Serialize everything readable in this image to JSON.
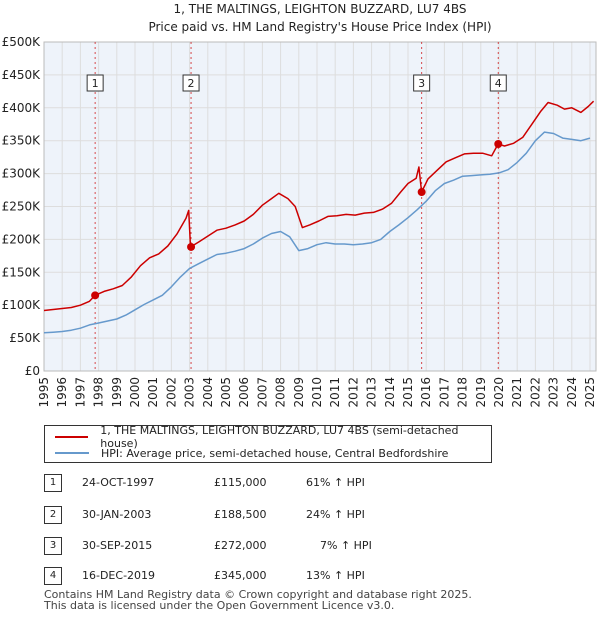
{
  "chart_data": {
    "type": "line",
    "title": "1, THE MALTINGS, LEIGHTON BUZZARD, LU7 4BS",
    "subtitle": "Price paid vs. HM Land Registry's House Price Index (HPI)",
    "x_range": [
      1995,
      2025.33
    ],
    "ylim": [
      0,
      500000
    ],
    "y_ticks": [
      0,
      50000,
      100000,
      150000,
      200000,
      250000,
      300000,
      350000,
      400000,
      450000,
      500000
    ],
    "y_tick_labels": [
      "£0",
      "£50K",
      "£100K",
      "£150K",
      "£200K",
      "£250K",
      "£300K",
      "£350K",
      "£400K",
      "£450K",
      "£500K"
    ],
    "x_ticks": [
      1995,
      1996,
      1997,
      1998,
      1999,
      2000,
      2001,
      2002,
      2003,
      2004,
      2005,
      2006,
      2007,
      2008,
      2009,
      2010,
      2011,
      2012,
      2013,
      2014,
      2015,
      2016,
      2017,
      2018,
      2019,
      2020,
      2021,
      2022,
      2023,
      2024,
      2025
    ],
    "x_tick_labels": [
      "1995",
      "1996",
      "1997",
      "1998",
      "1999",
      "2000",
      "2001",
      "2002",
      "2003",
      "2004",
      "2005",
      "2006",
      "2007",
      "2008",
      "2009",
      "2010",
      "2011",
      "2012",
      "2013",
      "2014",
      "2015",
      "2016",
      "2017",
      "2018",
      "2019",
      "2020",
      "2021",
      "2022",
      "2023",
      "2024",
      "2025"
    ],
    "series": [
      {
        "name": "1, THE MALTINGS, LEIGHTON BUZZARD, LU7 4BS (semi-detached house)",
        "color": "#cc0000",
        "points": [
          [
            1995.0,
            92000
          ],
          [
            1995.5,
            93500
          ],
          [
            1996.0,
            95000
          ],
          [
            1996.5,
            96500
          ],
          [
            1997.0,
            100000
          ],
          [
            1997.5,
            106000
          ],
          [
            1997.81,
            115000
          ],
          [
            1998.3,
            121000
          ],
          [
            1998.8,
            125000
          ],
          [
            1999.3,
            130000
          ],
          [
            1999.8,
            143000
          ],
          [
            2000.3,
            160000
          ],
          [
            2000.8,
            172000
          ],
          [
            2001.3,
            178000
          ],
          [
            2001.8,
            190000
          ],
          [
            2002.3,
            208000
          ],
          [
            2002.8,
            232000
          ],
          [
            2002.95,
            244000
          ],
          [
            2003.05,
            188500
          ],
          [
            2003.5,
            196000
          ],
          [
            2004.0,
            205000
          ],
          [
            2004.5,
            214000
          ],
          [
            2005.0,
            217000
          ],
          [
            2005.5,
            222000
          ],
          [
            2006.0,
            228000
          ],
          [
            2006.5,
            238000
          ],
          [
            2007.0,
            252000
          ],
          [
            2007.5,
            262000
          ],
          [
            2007.9,
            270000
          ],
          [
            2008.4,
            262000
          ],
          [
            2008.8,
            250000
          ],
          [
            2009.2,
            218000
          ],
          [
            2009.6,
            222000
          ],
          [
            2010.1,
            228000
          ],
          [
            2010.6,
            235000
          ],
          [
            2011.1,
            236000
          ],
          [
            2011.6,
            238000
          ],
          [
            2012.1,
            237000
          ],
          [
            2012.6,
            240000
          ],
          [
            2013.1,
            241000
          ],
          [
            2013.6,
            246000
          ],
          [
            2014.1,
            255000
          ],
          [
            2014.6,
            272000
          ],
          [
            2015.0,
            285000
          ],
          [
            2015.45,
            293000
          ],
          [
            2015.6,
            310000
          ],
          [
            2015.75,
            272000
          ],
          [
            2016.1,
            292000
          ],
          [
            2016.6,
            305000
          ],
          [
            2017.1,
            318000
          ],
          [
            2017.6,
            324000
          ],
          [
            2018.1,
            330000
          ],
          [
            2018.6,
            331000
          ],
          [
            2019.1,
            331000
          ],
          [
            2019.6,
            327000
          ],
          [
            2019.95,
            345000
          ],
          [
            2020.3,
            342000
          ],
          [
            2020.8,
            346000
          ],
          [
            2021.3,
            355000
          ],
          [
            2021.8,
            375000
          ],
          [
            2022.3,
            395000
          ],
          [
            2022.7,
            408000
          ],
          [
            2023.2,
            404000
          ],
          [
            2023.6,
            398000
          ],
          [
            2024.0,
            400000
          ],
          [
            2024.5,
            393000
          ],
          [
            2024.9,
            402000
          ],
          [
            2025.2,
            410000
          ]
        ]
      },
      {
        "name": "HPI: Average price, semi-detached house, Central Bedfordshire",
        "color": "#6699cc",
        "points": [
          [
            1995.0,
            58000
          ],
          [
            1995.5,
            59000
          ],
          [
            1996.0,
            60000
          ],
          [
            1996.5,
            62000
          ],
          [
            1997.0,
            65000
          ],
          [
            1997.5,
            70000
          ],
          [
            1998.0,
            73000
          ],
          [
            1998.5,
            76000
          ],
          [
            1999.0,
            79000
          ],
          [
            1999.5,
            85000
          ],
          [
            2000.0,
            93000
          ],
          [
            2000.5,
            101000
          ],
          [
            2001.0,
            108000
          ],
          [
            2001.5,
            115000
          ],
          [
            2002.0,
            128000
          ],
          [
            2002.5,
            143000
          ],
          [
            2003.0,
            156000
          ],
          [
            2003.5,
            163000
          ],
          [
            2004.0,
            170000
          ],
          [
            2004.5,
            177000
          ],
          [
            2005.0,
            179000
          ],
          [
            2005.5,
            182000
          ],
          [
            2006.0,
            186000
          ],
          [
            2006.5,
            193000
          ],
          [
            2007.0,
            202000
          ],
          [
            2007.5,
            209000
          ],
          [
            2008.0,
            212000
          ],
          [
            2008.5,
            204000
          ],
          [
            2009.0,
            183000
          ],
          [
            2009.5,
            186000
          ],
          [
            2010.0,
            192000
          ],
          [
            2010.5,
            195000
          ],
          [
            2011.0,
            193000
          ],
          [
            2011.5,
            193000
          ],
          [
            2012.0,
            192000
          ],
          [
            2012.5,
            193000
          ],
          [
            2013.0,
            195000
          ],
          [
            2013.5,
            200000
          ],
          [
            2014.0,
            212000
          ],
          [
            2014.5,
            222000
          ],
          [
            2015.0,
            233000
          ],
          [
            2015.5,
            245000
          ],
          [
            2016.0,
            258000
          ],
          [
            2016.5,
            274000
          ],
          [
            2017.0,
            285000
          ],
          [
            2017.5,
            290000
          ],
          [
            2018.0,
            296000
          ],
          [
            2018.5,
            297000
          ],
          [
            2019.0,
            298000
          ],
          [
            2019.5,
            299000
          ],
          [
            2020.0,
            301000
          ],
          [
            2020.5,
            306000
          ],
          [
            2021.0,
            317000
          ],
          [
            2021.5,
            331000
          ],
          [
            2022.0,
            350000
          ],
          [
            2022.5,
            363000
          ],
          [
            2023.0,
            361000
          ],
          [
            2023.5,
            354000
          ],
          [
            2024.0,
            352000
          ],
          [
            2024.5,
            350000
          ],
          [
            2025.0,
            354000
          ]
        ]
      }
    ],
    "sales": [
      {
        "label": "1",
        "date": 1997.81,
        "price": 115000
      },
      {
        "label": "2",
        "date": 2003.08,
        "price": 188500
      },
      {
        "label": "3",
        "date": 2015.75,
        "price": 272000
      },
      {
        "label": "4",
        "date": 2019.96,
        "price": 345000
      }
    ]
  },
  "legend": {
    "property_label": "1, THE MALTINGS, LEIGHTON BUZZARD, LU7 4BS (semi-detached house)",
    "hpi_label": "HPI: Average price, semi-detached house, Central Bedfordshire"
  },
  "sales_table": [
    {
      "num": "1",
      "date": "24-OCT-1997",
      "price": "£115,000",
      "hpi": "61% ↑ HPI"
    },
    {
      "num": "2",
      "date": "30-JAN-2003",
      "price": "£188,500",
      "hpi": "24% ↑ HPI"
    },
    {
      "num": "3",
      "date": "30-SEP-2015",
      "price": "£272,000",
      "hpi": "7% ↑ HPI"
    },
    {
      "num": "4",
      "date": "16-DEC-2019",
      "price": "£345,000",
      "hpi": "13% ↑ HPI"
    }
  ],
  "footer": {
    "line1": "Contains HM Land Registry data © Crown copyright and database right 2025.",
    "line2": "This data is licensed under the Open Government Licence v3.0."
  },
  "colors": {
    "property": "#cc0000",
    "hpi": "#6699cc",
    "grid": "#dddddd",
    "plot_bg": "#eef3fa"
  }
}
